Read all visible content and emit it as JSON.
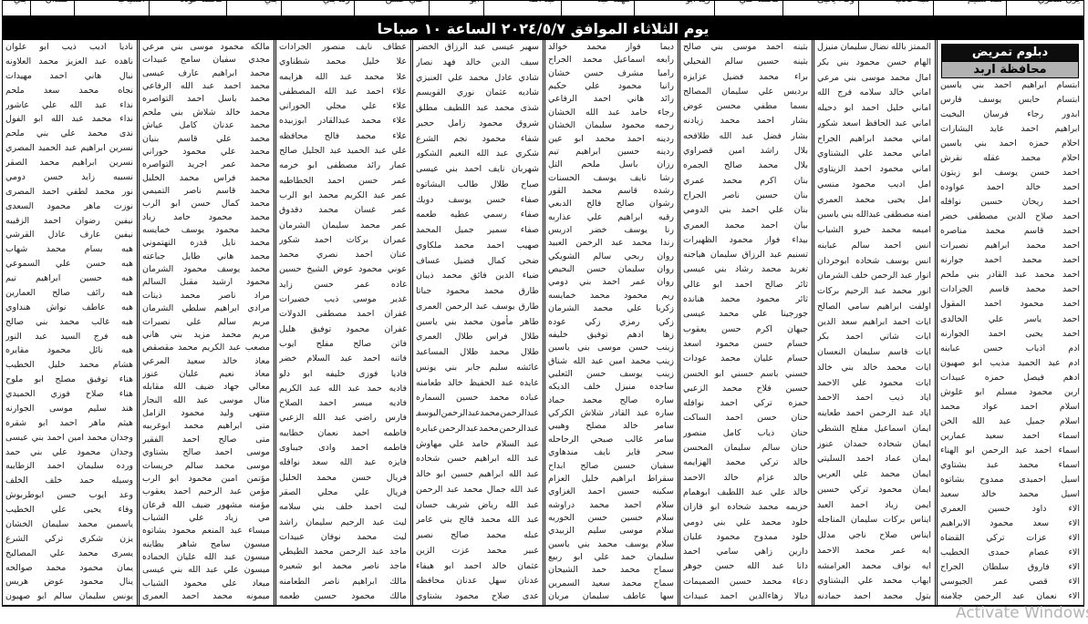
{
  "header": {
    "title": "يوم الثلاثاء الموافق ٢٠٢٤/٥/٧ الساعة ١٠ صباحا"
  },
  "box": {
    "line1": "دبلوم تمريض",
    "line2": "محافظة اربد"
  },
  "watermark": {
    "text": "Activate Windows"
  },
  "top_strip": {
    "fragments": [
      "يزن شكري",
      "هند سليم",
      "هبه غالب",
      "وفاء يحيى",
      "محمد علي",
      "زيد ابو",
      "مهند عبد",
      "عبد الله",
      "ابو",
      "علي حسن",
      "رند بني",
      "بني",
      "محمد عوده",
      "الشياب",
      "حمدان",
      "بني"
    ]
  },
  "table": {
    "columns": [
      {
        "names": [
          "ابتسام ابراهيم احمد بني ياسين",
          "ابتسام حابس يوسف فارس",
          "ابدور رجاء فرسان البخيت",
          "ابراهيم احمد عايد البشارات",
          "احلام حمزه احمد بني ياسين",
          "احلام محمد عقله نقرش",
          "احمد حسن يوسف ابو زيتون",
          "احمد خالد احمد عواوده",
          "احمد ريحان حسين نوافله",
          "احمد صلاح الدين مصطفى خضر",
          "احمد قاسم محمد مناصره",
          "احمد محمد ابراهيم نصيرات",
          "احمد محمد احمد جوارنه",
          "احمد محمد عبد القادر بني ملحم",
          "احمد محمد قاسم الجرادات",
          "احمد محمود احمد المقول",
          "احمد ياسر علي الخالدى",
          "احمد يحيى احمد الجوارنه",
          "ادم اذياب حسن عبابنه",
          "ادم عبد الحميد مذيب ابو صهيون",
          "ادهم فيصل حمزه عبيدات",
          "ارين محمود مسلم ابو علوش",
          "اسلام احمد عواد محمد",
          "اسلام جميل عبد الله الخن",
          "اسماء احمد سعيد عمارين",
          "اسماء احمد عبد الرحمن ابو الهناء",
          "اسماء محمد عبد بشتاوي",
          "اسيل احميدى ممدوح بشاتوه",
          "اسيل محمد خالد سعيد",
          "الاء داود حسين العمري",
          "الاء سعد محمود الابراهيم",
          "الاء عزات تركي القضاه",
          "الاء عصام حمدى الخطيب",
          "الاء فاروق سلطان الجراح",
          "الاء قصي عمر الجيوسي",
          "الاء نعمان عبد الرحمن جلامنه"
        ]
      },
      {
        "names": [
          "الممتز بالله نضال سليمان منيزل",
          "الهام حسن محمود بني بكر",
          "امال محمد موسى بني مرعي",
          "اماني خالد سلامه فرج الله",
          "اماني خليل احمد ابو دحيله",
          "اماني عبد الحافظ اسعد شكور",
          "اماني محمد ابراهيم الجراح",
          "اماني محمد علي البشتاوي",
          "اماني محمود احمد الزيتاوي",
          "امل اديب محمود منسي",
          "امل يحيى محمد العمري",
          "امنه مصطفى عبدالله بني ياسين",
          "اميمه محمد خيرو الشياب",
          "انس احمد سالم عبابنه",
          "انس يوسف شحاده ابوجردان",
          "انوار عبد الرحمن خلف الشرمان",
          "انور محمد عبد الرحيم بركات",
          "اولفت ابراهيم سامي الصالح",
          "ايات احمد ابراهيم سعد الدين",
          "ايات شاتي احمد بكر",
          "ايات قاسم سليمان النعسان",
          "ايات محمد خالد بني خالد",
          "ايات محمود علي الاحمد",
          "اياد ذيب احمد الاحمد",
          "اياد عبد الرحمن احمد طعاينه",
          "ايمان اسماعيل مفلح الشطي",
          "ايمان شحاده حمدان عنوز",
          "ايمان عماد احمد السليتي",
          "ايمان محمد علي العربي",
          "ايمان محمود تركي حسين",
          "ايمن زياد احمد العيد",
          "ايناس بركات سليمان المناجله",
          "ايناس صلاح ناجي مدلل",
          "ايه عمر محمد الاحمد",
          "ايه نواف محمد العرامشه",
          "ايهاب محمد علي البشتاوي",
          "بتول محمد احمد حمادنه"
        ]
      },
      {
        "names": [
          "بثينه احمد موسى بني صالح",
          "بثينه حسين سالم الفحيلي",
          "براء محمد فضيل عزايزه",
          "برديس علي سليمان المصالح",
          "بسما مطفي محسن عوض",
          "بشار احمد محمد زيادنه",
          "بشار فضل عبد الله طلافحه",
          "بلال راشد امين قصراوي",
          "بلال محمد صالح الجمره",
          "بنان اكرم محمد عمري",
          "بنان حسين ناصر الجراح",
          "بنان علي احمد بني الدومي",
          "بيان احمد محمد العمري",
          "بيداء فواز محمود الظهيرات",
          "تسنيم عبد الرزاق سليمان هياجنه",
          "تغريد محمد رشاد بني عيسى",
          "ثائر صالح احمد ابو غالي",
          "ثائر محمود محمد هنانده",
          "جورجينا علي محمد عيسى",
          "جيهان اكرم حسن يعقوب",
          "حسام حسن محمود اسعد",
          "حسام عليان محمد عودات",
          "حسني باسم حسني ابو الحسن",
          "حسين فلاح محمد الزعبي",
          "حمزه تركي احمد نوافله",
          "حنان حسن احمد الساكت",
          "حنان ذياب كامل منصور",
          "حنان سالم سليمان المحسن",
          "خالد تركي محمد الهزايمه",
          "خالد عزام خالد الاحمد",
          "خالد علي عبد اللطيف ابوهمام",
          "خزيمه محمد شحاده ابو قازان",
          "خلود محمد علي بني دومي",
          "خلود ممدوح محمود عليان",
          "دارين زاهي سامي احمد",
          "دانا عبد الله حسن جوهر",
          "دعاء محمد حسين الصميمات",
          "ديالا زهاءالدين احمد عبيدات"
        ]
      },
      {
        "names": [
          "ديما فواز محمد خوالد",
          "رابعه اسماعيل محمد الجراح",
          "راميا مشرف حسن خشان",
          "رانيا محمود علي حكيم",
          "رائد هاني احمد الرفاعي",
          "رجاء حامد عبد الله الخشان",
          "رحمه محمود سليمان الخشان",
          "ردينه احمد محمد ابو عين",
          "ردينه حسين ابراهيم تيم",
          "رزان باسل ملحم التل",
          "رشا نايف يوسف الحسنات",
          "رشده قاسم محمد القور",
          "رشوان صالح فالح الدبعي",
          "رقيه ابراهيم علي عذاربه",
          "رنا يوسف خضر ادريس",
          "رندا محمد عبد الرحمن العبيد",
          "روان ربحي سالم الشويكي",
          "روان سليمان حسن البحيص",
          "روان عمر احمد بني دومي",
          "ريم محمود محمد خمايسه",
          "زكريا علي محمد الشرمان",
          "زكي رمزي زكي عوده",
          "زها ادهم توفيق خليفه",
          "زينب حسن موسى بني ياسين",
          "زينب محمد امين عبد الله شناق",
          "زينب يوسف حسن الثعلبي",
          "ساجده منيزل خلف الديكه",
          "ساره صالح محمد حماد",
          "ساره عبد القادر شلاش الكركي",
          "سامر خالد مصلح وهيبي",
          "سامر غالب صبحي الرحاحله",
          "سحر فايز نايف مندهاوي",
          "سفيان حسين صالح ابداح",
          "سقراط ابراهيم خليل العزام",
          "سكينه حسين احمد الغزاوي",
          "سلام احمد محمد دراوشه",
          "سلام حسين حسن الحوريه",
          "سلام موسى سليم الزبيدي",
          "سلام يوسف محمد بني ياسين",
          "سليمان حمد علي ابو ربيع",
          "سماح محمد حمد الشيحان",
          "سماح محمد سعيد السمرين",
          "سها عاطف سليمان مريان"
        ]
      },
      {
        "names": [
          "سهير عيسى عبد الرزاق الخضر",
          "سيف الدين خالد فهد نصار",
          "شادي عادل محمد علي العنيزي",
          "شاديه عثمان نوري القويسم",
          "شذى محمد عبد اللطيف مطلق",
          "شروق محمود زامل حجير",
          "شفاء محمود نجم الشرع",
          "شكري عبد الله النعيم الشكور",
          "شهربان نايف احمد بني عيسى",
          "صباح طلال طالب البشاتوه",
          "صفاء حسن يوسف دويك",
          "صفاء رسمي عطيه طعمه",
          "صفاء سمير جميل المحمد",
          "صهيب احمد محمد ملكاوي",
          "ضحى كمال فضيل عساف",
          "ضياء الدين فائق محمد ذيبان",
          "طارق محمد محمود جباتا",
          "طارق يوسف عبد الرحمن العمرى",
          "طاهر مأمون محمد بني ياسين",
          "طلال فراس طلال العمري",
          "طلال محمد طلال المساعيد",
          "عائشه سليم جابر بني يونس",
          "عايده عبد الحفيظ خالد طعامنه",
          "عباده محمد حسين السماره",
          "عبد الرحمن محمد عبد الرحمن اليوسف",
          "عبد الرحمن محمد عبد الرحمن عبايره",
          "عبد السلام حامد علي مهاوش",
          "عبد الله ابراهيم حسن شحاده",
          "عبد الله ابراهيم حسين ابو خالد",
          "عبد الله جمال محمد عبد الرحمن",
          "عبد الله رياض شريف حسان",
          "عبد الله محمد فالح بني عامر",
          "عبله محمد صالح نصير",
          "عبير محمد عزت الزين",
          "عثمان خالد احمد ابو هيفاء",
          "عدنان سهل عدنان محافظه",
          "عدى صلاح محمود بشتاوي"
        ]
      },
      {
        "names": [
          "عطاف نايف منصور الجرادات",
          "علا خليل محمد شطناوي",
          "علا محمد عبد الله هزايمه",
          "علاء احمد عبد الله المصطفى",
          "علاء علي مجلي الحوراني",
          "علاء محمد عبدالقادر ابوزبيده",
          "علاء محمد فالح محافظه",
          "علي عبد الحميد عبد الجليل صالح",
          "عمار رائد مصطفى ابو خرمه",
          "عمر حسن احمد الخطاطبه",
          "عمر عبد الكريم محمد ابو الرب",
          "عمر غسان محمد دقدوق",
          "عمر محمد سليمان الشرمان",
          "عمران بركات احمد شكور",
          "عنان احمد نصري محمد",
          "عوني محمود عوض الشيخ حسين",
          "غاده عمر حسن زايد",
          "غدير موسى ذيب خضيرات",
          "غفران احمد مصطفى الدولات",
          "غفران محمود توفيق هليل",
          "فاتن صالح مفلح ايوب",
          "فاتنه احمد عبد السلام خضر",
          "فاديا فوزى خليفه ابو دلو",
          "فاديه حمد عبد الله عبد الكريم",
          "فاديه ميسر احمد الصلاح",
          "فارس راضي عبد الله الزعبي",
          "فاطمه احمد نعمان خطايبه",
          "فاطمه احمد وادى جيباوى",
          "فايزه عبد الله سعد نوافله",
          "فريال حسن محمد الخليل",
          "فريال علي مجلي الصقر",
          "ليث احمد خلف بني سلامه",
          "ليث عبد الرحيم سليمان راشد",
          "ليث محمد نوفان عبيدات",
          "ماجد عبد الرحمن محمد الطيطي",
          "ماجد ناصر محمد ابو شعيره",
          "مالك ابراهيم ناصر الطعامنه",
          "مالك محمود حسين طعمه"
        ]
      },
      {
        "names": [
          "مالكه محمود موسى بني مرعي",
          "مجدي سفيان سامح عبيدات",
          "محمد ابراهيم عارف عيسى",
          "محمد احمد عبد الله الرفاعي",
          "محمد باسل احمد التواصره",
          "محمد خالد شلاش بني ملحم",
          "محمد عدنان كامل عياش",
          "محمد علي قاسم بنيان",
          "محمد علي محمود حوراني",
          "محمد عمر اجريد التواصره",
          "محمد فراس محمد الخليل",
          "محمد قاسم ناصر التميمي",
          "محمد كمال حسن ابو الرب",
          "محمد محمود حامد زياد",
          "محمد محمود يوسف خمايسه",
          "محمد نايل قدره التهتموني",
          "محمد هاني طايل جباعته",
          "محمد يوسف محمود الشرمان",
          "محمود ارشيد مقبل السالم",
          "مراد ناصر محمد ذينات",
          "مرادي ابراهيم سلطي الشرمان",
          "مريم سالم علي نصيرات",
          "مريم محمد مزيد بني هاني",
          "مصعب عبد الكريم محمد مقصقص",
          "معاذ خالد سعيد المرعي",
          "معاذ نعيم عليان عنوز",
          "معالي جهاد ضيف الله مقابله",
          "منال موسى عبد الله النجار",
          "منتهى وليد محمود الزامل",
          "متى ابراهيم محمد ابوغربيه",
          "متى صالح احمد الفقير",
          "موسى احمد صالح بشتاوي",
          "موسى محمد سالم خريسات",
          "مؤتمن امين محمود ابو الرب",
          "مؤمن عبد الرحيم احمد يعقوب",
          "مؤمنه مشهور ضيف الله قرعان",
          "مي زياد علي الشياب",
          "ميساء عبد المنعم محمود بشاتوه",
          "ميسون سامح شاهر بطاينه",
          "ميسون عبد الله عليان الحماده",
          "ميسون علي عبد الله بني عيسى",
          "ميعاد علي محمود الشياب",
          "ميمونه محمد احمد العمرى"
        ]
      },
      {
        "names": [
          "ناديا اديب ذيب ابو علوان",
          "ناهده عبد العزيز محمد العلاونه",
          "نبال هاني احمد مهيدات",
          "نجاه محمد سعد ملحم",
          "نداء عبد الله علي عاشور",
          "نداء محمد عبد الله ابو الفول",
          "ندى محمد علي بني ملحم",
          "نسرين ابراهيم عبد الحميد المصري",
          "نسرين ابراهيم محمد الصقر",
          "نسيبه زايد حسن دومي",
          "نور محمد لطفي احمد المصرى",
          "نوزت ماهر محمود السعدى",
          "نيفين رضوان احمد الزقيبه",
          "نيفين عارف عادل القرشي",
          "هبه بسام محمد شهاب",
          "هبه حسن علي السموعي",
          "هبه حسين ابراهيم تيم",
          "هبه رائف صالح العمارين",
          "هبه عاطف نواش هنداوي",
          "هبه غالب محمد بني صالح",
          "هبه فرج السيد عبد النور",
          "هبه نائل محمود مقايره",
          "هشام محمد خليل الخطيب",
          "هناء توفيق مصلح ابو ملوح",
          "هناء صلاح فوزي الحميدي",
          "هند سليم موسى الجوارنه",
          "هيثم ماهر احمد ابو شقره",
          "وجدان محمد امين احمد بني عيسى",
          "وجدان محمود علي بني حمد",
          "ورده سليمان احمد الزطايبه",
          "وسيله حمد خلف الخلف",
          "وعد ايوب حسن ابوطربوش",
          "وفاء يحيى علي الخطيب",
          "ياسمين محمد سليمان الخشان",
          "يزن شكري تركي الشرع",
          "يسرى محمد علي المصاليخ",
          "يمان محمود محمد صوالحه",
          "ينال محمود عوض هريس",
          "يونس سليمان سالم ابو صهيون"
        ]
      }
    ]
  }
}
